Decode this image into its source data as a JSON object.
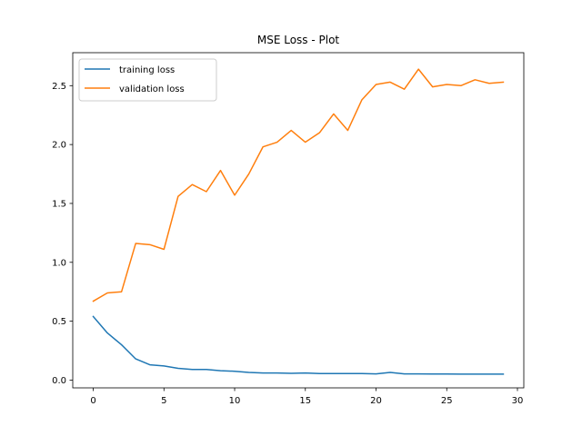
{
  "chart_data": {
    "type": "line",
    "title": "MSE Loss - Plot",
    "xlabel": "",
    "ylabel": "",
    "xlim": [
      -1.45,
      30.45
    ],
    "ylim": [
      -0.066,
      2.78
    ],
    "xticks": [
      0,
      5,
      10,
      15,
      20,
      25,
      30
    ],
    "yticks": [
      0.0,
      0.5,
      1.0,
      1.5,
      2.0,
      2.5
    ],
    "ytick_labels": [
      "0.0",
      "0.5",
      "1.0",
      "1.5",
      "2.0",
      "2.5"
    ],
    "grid": false,
    "legend_position": "top-left",
    "x": [
      0,
      1,
      2,
      3,
      4,
      5,
      6,
      7,
      8,
      9,
      10,
      11,
      12,
      13,
      14,
      15,
      16,
      17,
      18,
      19,
      20,
      21,
      22,
      23,
      24,
      25,
      26,
      27,
      28,
      29
    ],
    "series": [
      {
        "name": "training loss",
        "color": "#1f77b4",
        "values": [
          0.54,
          0.4,
          0.3,
          0.18,
          0.13,
          0.12,
          0.1,
          0.09,
          0.09,
          0.08,
          0.075,
          0.065,
          0.06,
          0.06,
          0.057,
          0.06,
          0.055,
          0.055,
          0.055,
          0.055,
          0.053,
          0.065,
          0.053,
          0.053,
          0.052,
          0.052,
          0.051,
          0.051,
          0.051,
          0.051
        ]
      },
      {
        "name": "validation loss",
        "color": "#ff7f0e",
        "values": [
          0.67,
          0.74,
          0.75,
          1.16,
          1.15,
          1.11,
          1.56,
          1.66,
          1.6,
          1.78,
          1.57,
          1.75,
          1.98,
          2.02,
          2.12,
          2.02,
          2.1,
          2.26,
          2.12,
          2.38,
          2.51,
          2.53,
          2.47,
          2.64,
          2.49,
          2.51,
          2.5,
          2.55,
          2.52,
          2.53
        ]
      }
    ]
  }
}
